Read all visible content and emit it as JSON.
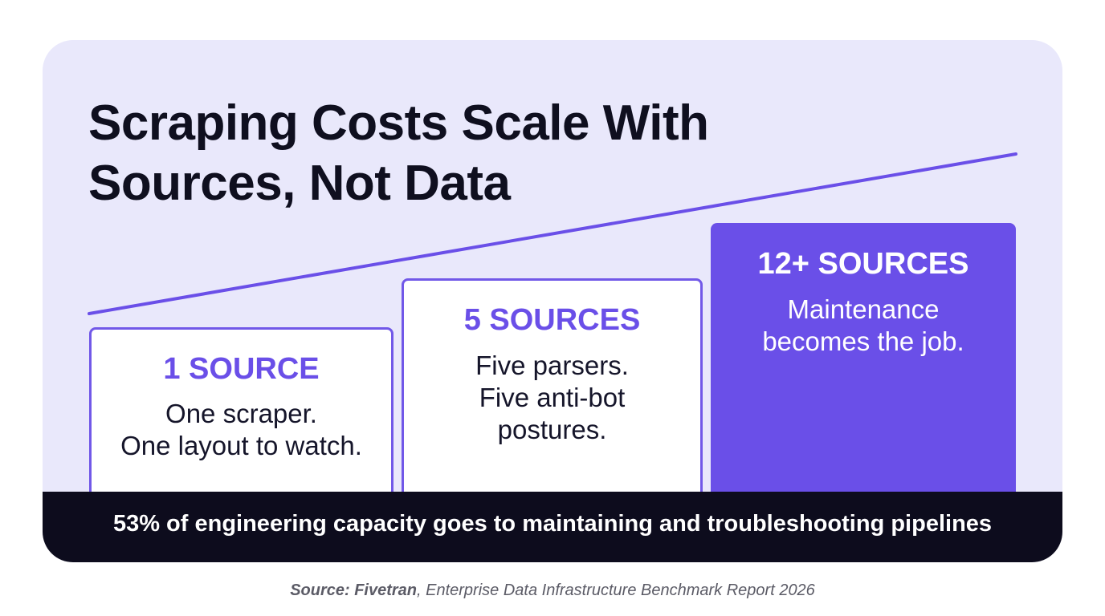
{
  "title": {
    "line1": "Scraping Costs Scale With",
    "line2": "Sources, Not Data"
  },
  "colors": {
    "card_background": "#e9e8fb",
    "accent": "#6a4fe8",
    "banner_background": "#0d0c1d",
    "title_text": "#0f0f1f"
  },
  "steps": [
    {
      "heading": "1 SOURCE",
      "lines": [
        "One scraper.",
        "One layout to watch."
      ]
    },
    {
      "heading": "5 SOURCES",
      "lines": [
        "Five parsers.",
        "Five anti-bot",
        "postures."
      ]
    },
    {
      "heading": "12+ SOURCES",
      "lines": [
        "Maintenance",
        "becomes the job."
      ]
    }
  ],
  "banner": {
    "text": "53% of engineering capacity goes to maintaining and troubleshooting pipelines"
  },
  "source": {
    "label": "Source: Fivetran",
    "detail": ", Enterprise Data Infrastructure Benchmark Report 2026"
  }
}
